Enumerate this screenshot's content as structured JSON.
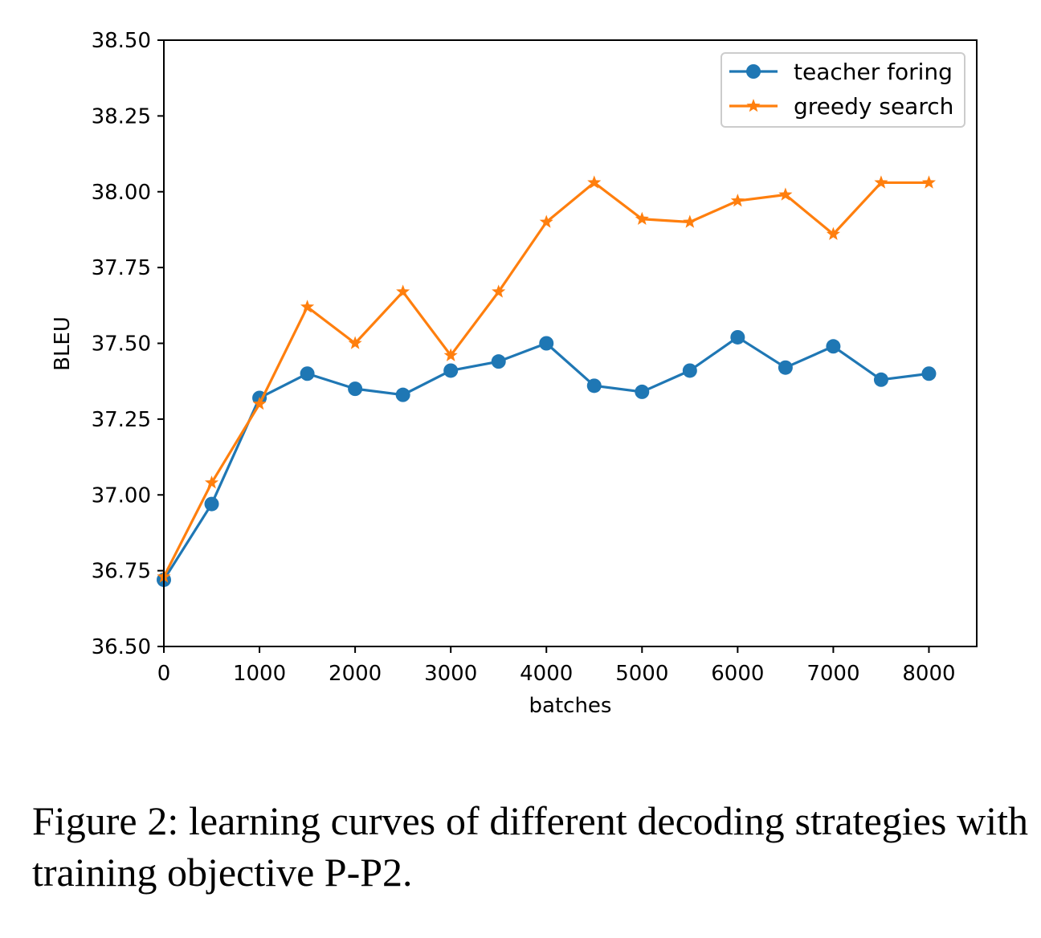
{
  "chart_data": {
    "type": "line",
    "xlabel": "batches",
    "ylabel": "BLEU",
    "xlim": [
      0,
      8500
    ],
    "ylim": [
      36.5,
      38.5
    ],
    "xticks": [
      "0",
      "1000",
      "2000",
      "3000",
      "4000",
      "5000",
      "6000",
      "7000",
      "8000"
    ],
    "yticks": [
      "36.50",
      "36.75",
      "37.00",
      "37.25",
      "37.50",
      "37.75",
      "38.00",
      "38.25",
      "38.50"
    ],
    "grid": false,
    "legend_position": "top-right",
    "x": [
      0,
      500,
      1000,
      1500,
      2000,
      2500,
      3000,
      3500,
      4000,
      4500,
      5000,
      5500,
      6000,
      6500,
      7000,
      7500,
      8000
    ],
    "series": [
      {
        "name": "teacher foring",
        "color": "#1f77b4",
        "marker": "circle",
        "values": [
          36.72,
          36.97,
          37.32,
          37.4,
          37.35,
          37.33,
          37.41,
          37.44,
          37.5,
          37.36,
          37.34,
          37.41,
          37.52,
          37.42,
          37.49,
          37.38,
          37.4
        ]
      },
      {
        "name": "greedy search",
        "color": "#ff7f0e",
        "marker": "star",
        "values": [
          36.73,
          37.04,
          37.3,
          37.62,
          37.5,
          37.67,
          37.46,
          37.67,
          37.9,
          38.03,
          37.91,
          37.9,
          37.97,
          37.99,
          37.86,
          38.03,
          38.03
        ]
      }
    ]
  },
  "caption": "Figure 2: learning curves of different decoding strategies with training objective P-P2."
}
